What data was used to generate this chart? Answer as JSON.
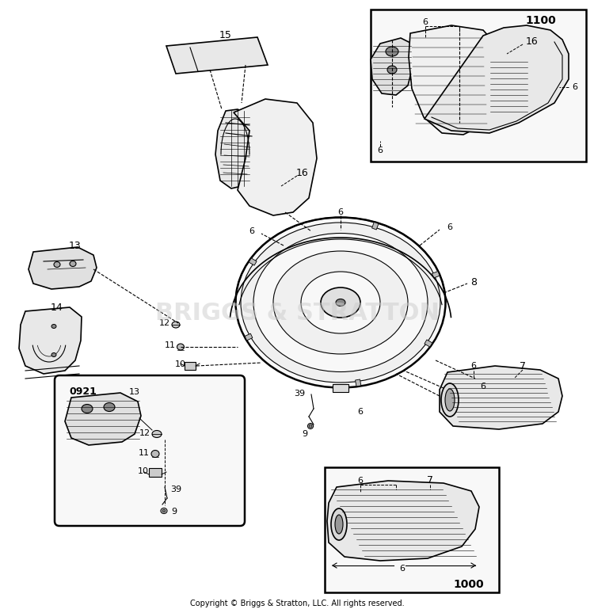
{
  "background_color": "#ffffff",
  "line_color": "#000000",
  "copyright_text": "Copyright © Briggs & Stratton, LLC. All rights reserved.",
  "copyright_fontsize": 7,
  "watermark_text": "BRIGGS & STRATTON",
  "watermark_color": "#cccccc",
  "fig_w": 7.5,
  "fig_h": 7.74,
  "dpi": 100
}
